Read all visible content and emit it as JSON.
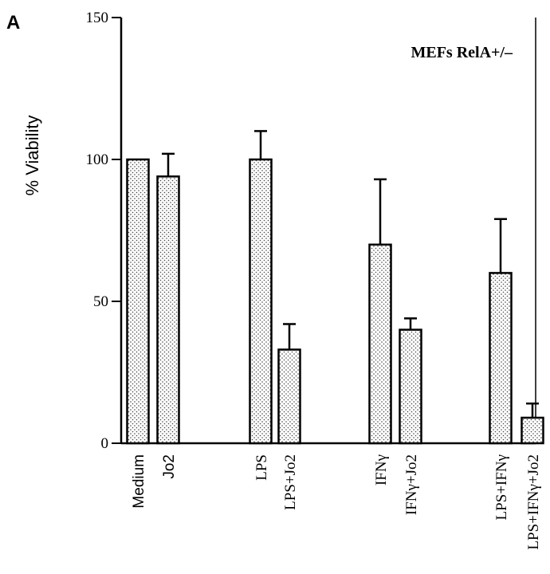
{
  "panel_label": "A",
  "chart_data": {
    "type": "bar",
    "title": "MEFs RelA+/–",
    "ylabel": "% Viability",
    "xlabel": "",
    "ylim": [
      0,
      150
    ],
    "yticks": [
      0,
      50,
      100,
      150
    ],
    "grid": false,
    "categories": [
      "Medium",
      "Jo2",
      "LPS",
      "LPS+Jo2",
      "IFNγ",
      "IFNγ+Jo2",
      "LPS+IFNγ",
      "LPS+IFNγ+Jo2"
    ],
    "values": [
      100,
      94,
      100,
      33,
      70,
      40,
      60,
      9
    ],
    "errors": [
      0,
      8,
      10,
      9,
      23,
      4,
      19,
      5
    ],
    "groups": [
      [
        0,
        1
      ],
      [
        2,
        3
      ],
      [
        4,
        5
      ],
      [
        6,
        7
      ]
    ],
    "colors": {
      "bar_fill": "#ffffff",
      "bar_dots": "#444444",
      "stroke": "#000000"
    }
  }
}
